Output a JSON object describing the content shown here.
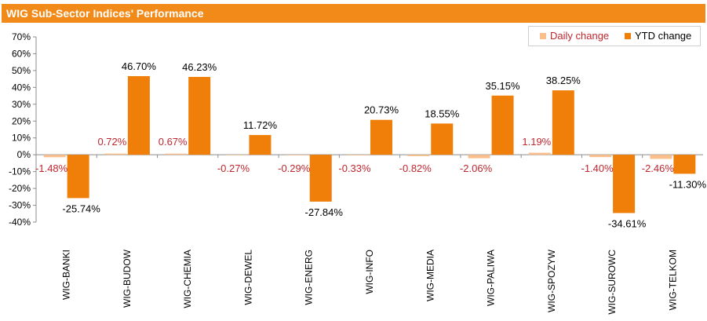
{
  "colors": {
    "daily": "#fbbf8e",
    "ytd": "#f07f09",
    "title_bg": "#f28a19",
    "daily_label": "#c0262e",
    "ytd_label": "#000000"
  },
  "chart_data": {
    "type": "bar",
    "title": "WIG Sub-Sector Indices' Performance",
    "categories": [
      "WIG-BANKI",
      "WIG-BUDOW",
      "WIG-CHEMIA",
      "WIG-DEWEL",
      "WIG-ENERG",
      "WIG-INFO",
      "WIG-MEDIA",
      "WIG-PALIWA",
      "WIG-SPOZYW",
      "WIG-SUROWC",
      "WIG-TELKOM"
    ],
    "series": [
      {
        "name": "Daily change",
        "values": [
          -1.48,
          0.72,
          0.67,
          -0.27,
          -0.29,
          -0.33,
          -0.82,
          -2.06,
          1.19,
          -1.4,
          -2.46
        ],
        "labels": [
          "-1.48%",
          "0.72%",
          "0.67%",
          "-0.27%",
          "-0.29%",
          "-0.33%",
          "-0.82%",
          "-2.06%",
          "1.19%",
          "-1.40%",
          "-2.46%"
        ]
      },
      {
        "name": "YTD change",
        "values": [
          -25.74,
          46.7,
          46.23,
          11.72,
          -27.84,
          20.73,
          18.55,
          35.15,
          38.25,
          -34.61,
          -11.3
        ],
        "labels": [
          "-25.74%",
          "46.70%",
          "46.23%",
          "11.72%",
          "-27.84%",
          "20.73%",
          "18.55%",
          "35.15%",
          "38.25%",
          "-34.61%",
          "-11.30%"
        ]
      }
    ],
    "ylim": [
      -40,
      70
    ],
    "yticks": [
      "70%",
      "60%",
      "50%",
      "40%",
      "30%",
      "20%",
      "10%",
      "0%",
      "-10%",
      "-20%",
      "-30%",
      "-40%"
    ],
    "legend_position": "top-right",
    "grid": false
  }
}
